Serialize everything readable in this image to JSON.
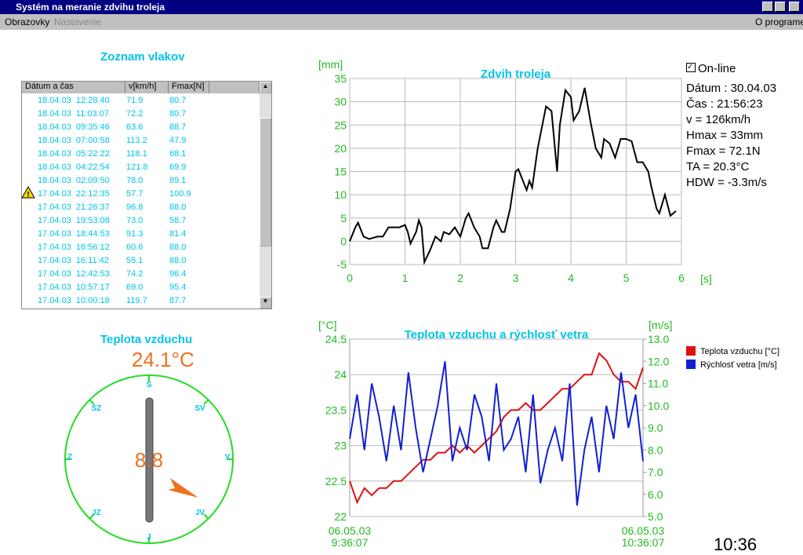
{
  "window": {
    "title": "Systém na meranie zdvihu troleja",
    "menu": [
      "Obrazovky",
      "Nastavenie",
      "O programe"
    ]
  },
  "train_list": {
    "title": "Zoznam vlakov",
    "columns": [
      "Dátum a čas",
      "v[km/h]",
      "Fmax[N]"
    ],
    "rows": [
      [
        "18.04.03  12:28:40",
        "71.9",
        "80.7"
      ],
      [
        "18.04.03  11:03:07",
        "72.2",
        "80.7"
      ],
      [
        "18.04.03  09:35:46",
        "63.6",
        "88.7"
      ],
      [
        "18.04.03  07:00:58",
        "113.2",
        "47.9"
      ],
      [
        "18.04.03  05:22:22",
        "118.1",
        "68.1"
      ],
      [
        "18.04.03  04:22:54",
        "121.8",
        "69.9"
      ],
      [
        "18.04.03  02:09:50",
        "78.0",
        "89.1"
      ],
      [
        "17.04.03  22:12:35",
        "57.7",
        "100.9"
      ],
      [
        "17.04.03  21:26:37",
        "96.8",
        "88.0"
      ],
      [
        "17.04.03  19:53:08",
        "73.0",
        "58.7"
      ],
      [
        "17.04.03  18:44:53",
        "91.3",
        "81.4"
      ],
      [
        "17.04.03  16:56:12",
        "60.6",
        "88.0"
      ],
      [
        "17.04.03  16:11:42",
        "55.1",
        "88.0"
      ],
      [
        "17.04.03  12:42:53",
        "74.2",
        "96.4"
      ],
      [
        "17.04.03  10:57:17",
        "69.0",
        "95.4"
      ],
      [
        "17.04.03  10:00:18",
        "119.7",
        "87.7"
      ]
    ]
  },
  "info": {
    "checkbox": "On-line",
    "lines": [
      "Dátum : 30.04.03",
      "Čas : 21:56:23",
      "v = 126km/h",
      "Hmax = 33mm",
      "Fmax = 72.1N",
      "TA = 20.3°C",
      "HDW = -3.3m/s"
    ]
  },
  "compass": {
    "title": "Teplota vzduchu",
    "temperature": "24.1°C",
    "wind_speed": "8.8",
    "directions": [
      "S",
      "SV",
      "V",
      "JV",
      "J",
      "JZ",
      "Z",
      "SZ"
    ]
  },
  "clock": "10:36",
  "chart_data": [
    {
      "type": "line",
      "title": "Zdvih troleja",
      "y_label": "[mm]",
      "x_label": "[s]",
      "x": [
        0,
        0.1,
        0.15,
        0.25,
        0.35,
        0.5,
        0.6,
        0.7,
        0.9,
        1.0,
        1.05,
        1.1,
        1.2,
        1.25,
        1.3,
        1.35,
        1.45,
        1.55,
        1.65,
        1.7,
        1.8,
        1.9,
        2.0,
        2.1,
        2.15,
        2.25,
        2.35,
        2.4,
        2.5,
        2.6,
        2.65,
        2.75,
        2.8,
        2.9,
        3.0,
        3.05,
        3.1,
        3.2,
        3.25,
        3.3,
        3.4,
        3.5,
        3.55,
        3.65,
        3.75,
        3.8,
        3.9,
        4.0,
        4.05,
        4.15,
        4.25,
        4.35,
        4.45,
        4.55,
        4.6,
        4.7,
        4.8,
        4.9,
        5.0,
        5.1,
        5.2,
        5.3,
        5.4,
        5.45,
        5.55,
        5.6,
        5.7,
        5.8,
        5.9
      ],
      "series": [
        {
          "color": "#000000",
          "values": [
            0,
            3,
            4,
            1,
            0.5,
            1,
            1,
            3,
            3,
            3.5,
            2,
            -0.5,
            2,
            4.5,
            3,
            -4.5,
            -2,
            1,
            0,
            2,
            1.5,
            3,
            1,
            5,
            6,
            3,
            1,
            -1.5,
            -1.5,
            3,
            4.5,
            2,
            2,
            7,
            15,
            15.5,
            14,
            11,
            13,
            11.5,
            20,
            26,
            29,
            28,
            15,
            25,
            32.5,
            31,
            26,
            28,
            33,
            26,
            20,
            18,
            22,
            21,
            18,
            22,
            22,
            21.5,
            17,
            17,
            15,
            12,
            7,
            6,
            10,
            5.5,
            6.5
          ]
        }
      ],
      "xlim": [
        0,
        6
      ],
      "xticks": [
        0,
        1,
        2,
        3,
        4,
        5,
        6
      ],
      "ylim": [
        -5,
        35
      ],
      "yticks": [
        -5,
        0,
        5,
        10,
        15,
        20,
        25,
        30,
        35
      ],
      "grid": true
    },
    {
      "type": "line",
      "title": "Teplota vzduchu a rýchlosť vetra",
      "y_label": "[°C]",
      "y2_label": "[m/s]",
      "legend": "right",
      "categories": [
        "06.05.03\n9:36:07",
        null,
        null,
        null,
        null,
        null,
        null,
        null,
        null,
        null,
        null,
        null,
        null,
        null,
        null,
        null,
        null,
        null,
        null,
        null,
        null,
        null,
        null,
        null,
        null,
        null,
        null,
        null,
        null,
        null,
        null,
        null,
        null,
        null,
        null,
        null,
        null,
        null,
        null,
        null,
        "06.05.03\n10:36:07"
      ],
      "series": [
        {
          "name": "Teplota vzduchu [°C]",
          "color": "#e01010",
          "values": [
            22.5,
            22.2,
            22.4,
            22.3,
            22.4,
            22.4,
            22.5,
            22.5,
            22.6,
            22.7,
            22.8,
            22.8,
            22.9,
            22.9,
            23.0,
            22.9,
            23.0,
            22.9,
            23.0,
            23.1,
            23.2,
            23.4,
            23.5,
            23.5,
            23.6,
            23.5,
            23.5,
            23.6,
            23.7,
            23.8,
            23.8,
            23.9,
            24.0,
            24.0,
            24.3,
            24.2,
            24.0,
            23.9,
            23.9,
            23.8,
            24.1
          ]
        },
        {
          "name": "Rýchlosť vetra [m/s]",
          "color": "#1020d0",
          "axis": "y2",
          "values": [
            8.5,
            10.5,
            8.0,
            11.0,
            9.5,
            7.5,
            10.0,
            8.0,
            11.5,
            9.0,
            7.0,
            8.5,
            10.0,
            12.0,
            7.5,
            9.0,
            8.0,
            10.5,
            9.5,
            7.5,
            11.0,
            8.0,
            8.5,
            9.5,
            7.0,
            10.5,
            6.5,
            8.0,
            9.0,
            7.5,
            11.0,
            5.5,
            8.0,
            9.5,
            7.0,
            10.0,
            8.5,
            11.5,
            9.0,
            10.5,
            7.5
          ]
        }
      ],
      "ylim": [
        22,
        24.5
      ],
      "yticks": [
        22,
        22.5,
        23,
        23.5,
        24,
        24.5
      ],
      "y2lim": [
        5,
        13
      ],
      "y2ticks": [
        {
          "value": 5,
          "label": "5.0"
        },
        {
          "value": 6,
          "label": "6.0"
        },
        {
          "value": 7,
          "label": "7.0"
        },
        {
          "value": 8,
          "label": "8.0"
        },
        {
          "value": 9,
          "label": "9.0"
        },
        {
          "value": 10,
          "label": "10.0"
        },
        {
          "value": 11,
          "label": "11.0"
        },
        {
          "value": 12,
          "label": "12.0"
        },
        {
          "value": 13,
          "label": "13.0"
        }
      ],
      "grid": true
    }
  ]
}
